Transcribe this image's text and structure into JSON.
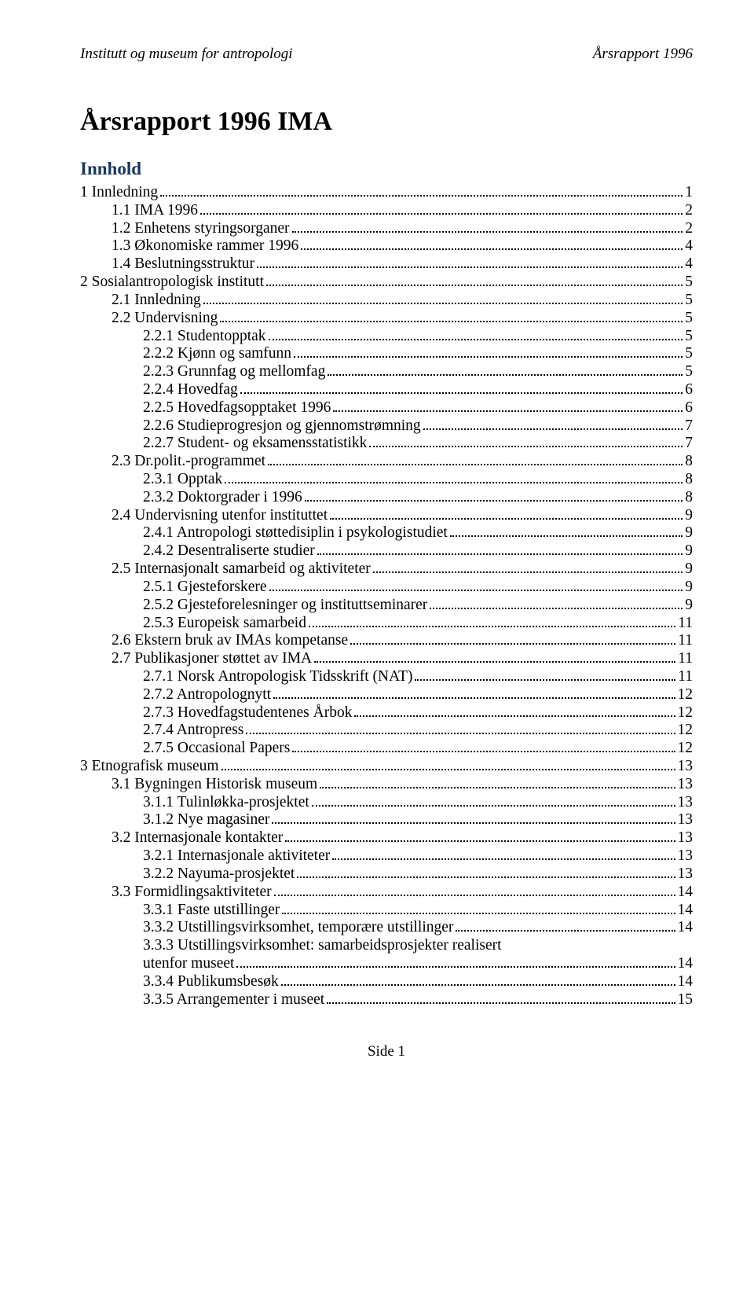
{
  "header": {
    "left": "Institutt og museum for antropologi",
    "right": "Årsrapport 1996"
  },
  "title": "Årsrapport 1996 IMA",
  "toc_heading": "Innhold",
  "toc": [
    {
      "label": "1 Innledning",
      "page": "1",
      "indent": 0
    },
    {
      "label": "1.1 IMA 1996",
      "page": "2",
      "indent": 1
    },
    {
      "label": "1.2 Enhetens styringsorganer",
      "page": "2",
      "indent": 1
    },
    {
      "label": "1.3 Økonomiske rammer 1996",
      "page": "4",
      "indent": 1
    },
    {
      "label": "1.4 Beslutningsstruktur",
      "page": "4",
      "indent": 1
    },
    {
      "label": "2 Sosialantropologisk institutt",
      "page": "5",
      "indent": 0
    },
    {
      "label": "2.1 Innledning",
      "page": "5",
      "indent": 1
    },
    {
      "label": "2.2 Undervisning",
      "page": "5",
      "indent": 1
    },
    {
      "label": "2.2.1 Studentopptak",
      "page": "5",
      "indent": 2
    },
    {
      "label": "2.2.2 Kjønn og samfunn",
      "page": "5",
      "indent": 2
    },
    {
      "label": "2.2.3 Grunnfag og mellomfag",
      "page": "5",
      "indent": 2
    },
    {
      "label": "2.2.4 Hovedfag",
      "page": "6",
      "indent": 2
    },
    {
      "label": "2.2.5 Hovedfagsopptaket 1996",
      "page": "6",
      "indent": 2
    },
    {
      "label": "2.2.6 Studieprogresjon og gjennomstrømning",
      "page": "7",
      "indent": 2
    },
    {
      "label": "2.2.7 Student- og eksamensstatistikk",
      "page": "7",
      "indent": 2
    },
    {
      "label": "2.3 Dr.polit.-programmet",
      "page": "8",
      "indent": 1
    },
    {
      "label": "2.3.1 Opptak",
      "page": "8",
      "indent": 2
    },
    {
      "label": "2.3.2 Doktorgrader i 1996",
      "page": "8",
      "indent": 2
    },
    {
      "label": "2.4 Undervisning utenfor instituttet",
      "page": "9",
      "indent": 1
    },
    {
      "label": "2.4.1 Antropologi støttedisiplin i psykologistudiet",
      "page": "9",
      "indent": 2
    },
    {
      "label": "2.4.2 Desentraliserte studier",
      "page": "9",
      "indent": 2
    },
    {
      "label": "2.5 Internasjonalt samarbeid og aktiviteter",
      "page": "9",
      "indent": 1
    },
    {
      "label": "2.5.1 Gjesteforskere",
      "page": "9",
      "indent": 2
    },
    {
      "label": "2.5.2 Gjesteforelesninger og instituttseminarer",
      "page": "9",
      "indent": 2
    },
    {
      "label": "2.5.3 Europeisk samarbeid",
      "page": "11",
      "indent": 2
    },
    {
      "label": "2.6 Ekstern bruk av IMAs kompetanse",
      "page": "11",
      "indent": 1
    },
    {
      "label": "2.7 Publikasjoner støttet av IMA",
      "page": "11",
      "indent": 1
    },
    {
      "label": "2.7.1 Norsk Antropologisk Tidsskrift (NAT)",
      "page": "11",
      "indent": 2
    },
    {
      "label": "2.7.2 Antropolognytt",
      "page": "12",
      "indent": 2
    },
    {
      "label": "2.7.3 Hovedfagstudentenes Årbok",
      "page": "12",
      "indent": 2
    },
    {
      "label": "2.7.4 Antropress",
      "page": "12",
      "indent": 2
    },
    {
      "label": "2.7.5 Occasional Papers",
      "page": "12",
      "indent": 2
    },
    {
      "label": "3 Etnografisk museum",
      "page": "13",
      "indent": 0
    },
    {
      "label": "3.1 Bygningen Historisk museum",
      "page": "13",
      "indent": 1
    },
    {
      "label": "3.1.1 Tulinløkka-prosjektet",
      "page": "13",
      "indent": 2
    },
    {
      "label": "3.1.2 Nye magasiner",
      "page": "13",
      "indent": 2
    },
    {
      "label": "3.2 Internasjonale kontakter",
      "page": "13",
      "indent": 1
    },
    {
      "label": "3.2.1 Internasjonale aktiviteter",
      "page": "13",
      "indent": 2
    },
    {
      "label": "3.2.2 Nayuma-prosjektet",
      "page": "13",
      "indent": 2
    },
    {
      "label": "3.3 Formidlingsaktiviteter",
      "page": "14",
      "indent": 1
    },
    {
      "label": "3.3.1 Faste utstillinger",
      "page": "14",
      "indent": 2
    },
    {
      "label": "3.3.2 Utstillingsvirksomhet, temporære utstillinger",
      "page": "14",
      "indent": 2
    },
    {
      "label": "3.3.3 Utstillingsvirksomhet: samarbeidsprosjekter realisert utenfor museet",
      "page": "14",
      "indent": 2,
      "wrap": true,
      "line1": "3.3.3 Utstillingsvirksomhet: samarbeidsprosjekter realisert",
      "line2": "utenfor museet"
    },
    {
      "label": "3.3.4 Publikumsbesøk",
      "page": "14",
      "indent": 2
    },
    {
      "label": "3.3.5 Arrangementer i museet",
      "page": "15",
      "indent": 2
    }
  ],
  "footer": "Side 1",
  "colors": {
    "heading": "#17365d",
    "text": "#000000",
    "background": "#ffffff"
  },
  "typography": {
    "body_font": "Times New Roman",
    "body_size_pt": 14,
    "title_size_pt": 25,
    "heading_size_pt": 17
  }
}
